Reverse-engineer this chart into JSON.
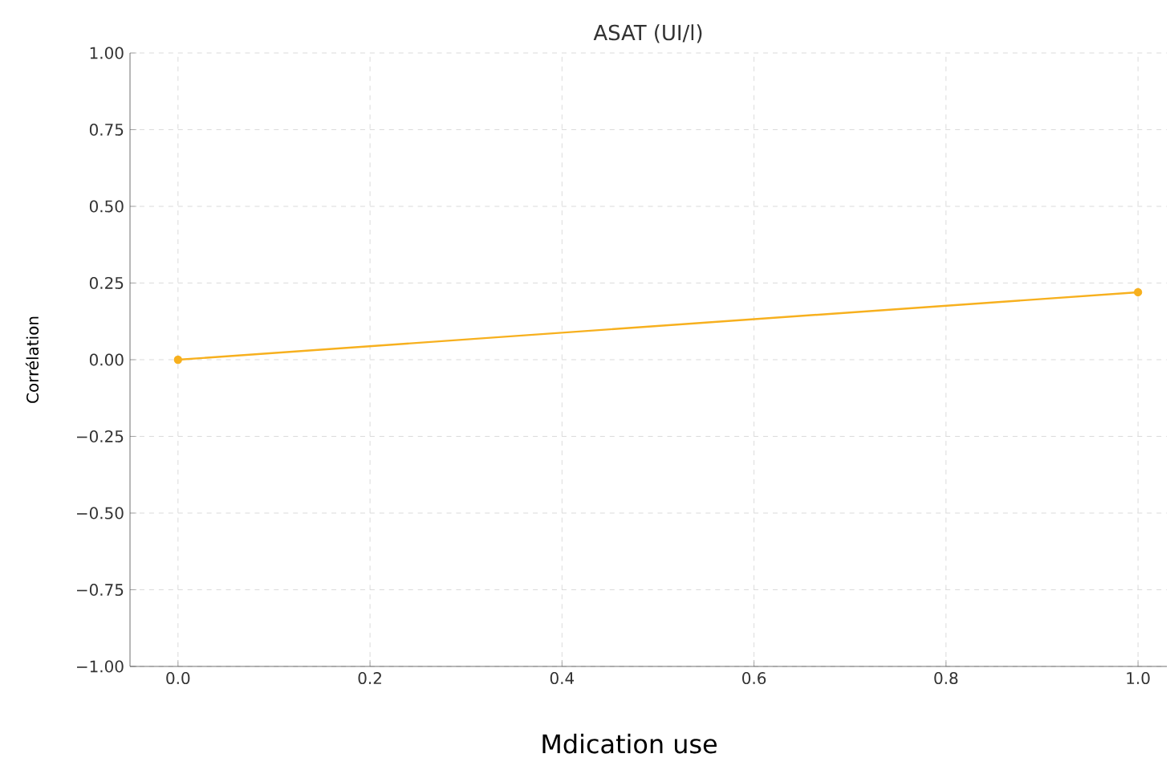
{
  "chart_data": {
    "type": "line",
    "title": "ASAT (UI/l)",
    "xlabel": "Mdication use",
    "ylabel": "Corrélation",
    "x": [
      0.0,
      1.0
    ],
    "series": [
      {
        "color": "#f7b01e",
        "values": [
          0.0,
          0.22
        ]
      }
    ],
    "xlim": [
      -0.05,
      1.03
    ],
    "ylim": [
      -1.0,
      1.0
    ],
    "xticks": [
      {
        "value": 0.0,
        "label": "0.0"
      },
      {
        "value": 0.2,
        "label": "0.2"
      },
      {
        "value": 0.4,
        "label": "0.4"
      },
      {
        "value": 0.6,
        "label": "0.6"
      },
      {
        "value": 0.8,
        "label": "0.8"
      },
      {
        "value": 1.0,
        "label": "1.0"
      }
    ],
    "yticks": [
      {
        "value": -1.0,
        "label": "−1.00"
      },
      {
        "value": -0.75,
        "label": "−0.75"
      },
      {
        "value": -0.5,
        "label": "−0.50"
      },
      {
        "value": -0.25,
        "label": "−0.25"
      },
      {
        "value": 0.0,
        "label": "0.00"
      },
      {
        "value": 0.25,
        "label": "0.25"
      },
      {
        "value": 0.5,
        "label": "0.50"
      },
      {
        "value": 0.75,
        "label": "0.75"
      },
      {
        "value": 1.0,
        "label": "1.00"
      }
    ],
    "grid": true,
    "marker": "circle",
    "line_style": "solid"
  }
}
